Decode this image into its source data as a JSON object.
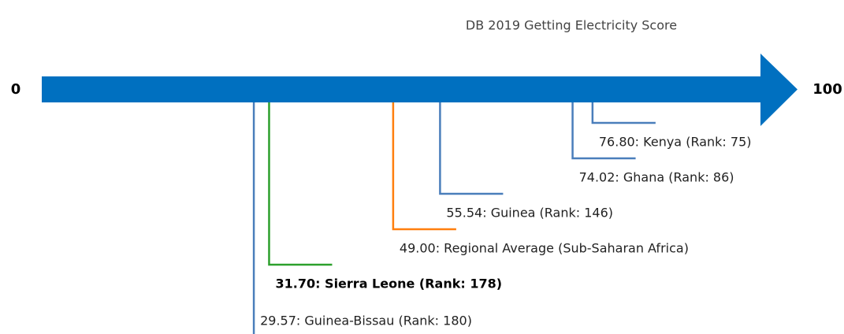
{
  "chart_data": {
    "type": "number-line",
    "title": "DB 2019 Getting Electricity Score",
    "xlim": [
      0,
      100
    ],
    "xticks": [
      0,
      100
    ],
    "axis_color": "#0070c0",
    "values": [
      29.57,
      31.7,
      49.0,
      55.54,
      74.02,
      76.8
    ],
    "labels": [
      "29.57: Guinea-Bissau (Rank: 180)",
      "31.70: Sierra Leone (Rank: 178)",
      "49.00: Regional Average (Sub-Saharan Africa)",
      "55.54: Guinea (Rank: 146)",
      "74.02: Ghana (Rank: 86)",
      "76.80: Kenya (Rank: 75)"
    ],
    "colors": [
      "#4a7ebb",
      "#2ca02c",
      "#ff7f0e",
      "#4a7ebb",
      "#4a7ebb",
      "#4a7ebb"
    ],
    "emphasis": [
      false,
      true,
      false,
      false,
      false,
      false
    ]
  }
}
